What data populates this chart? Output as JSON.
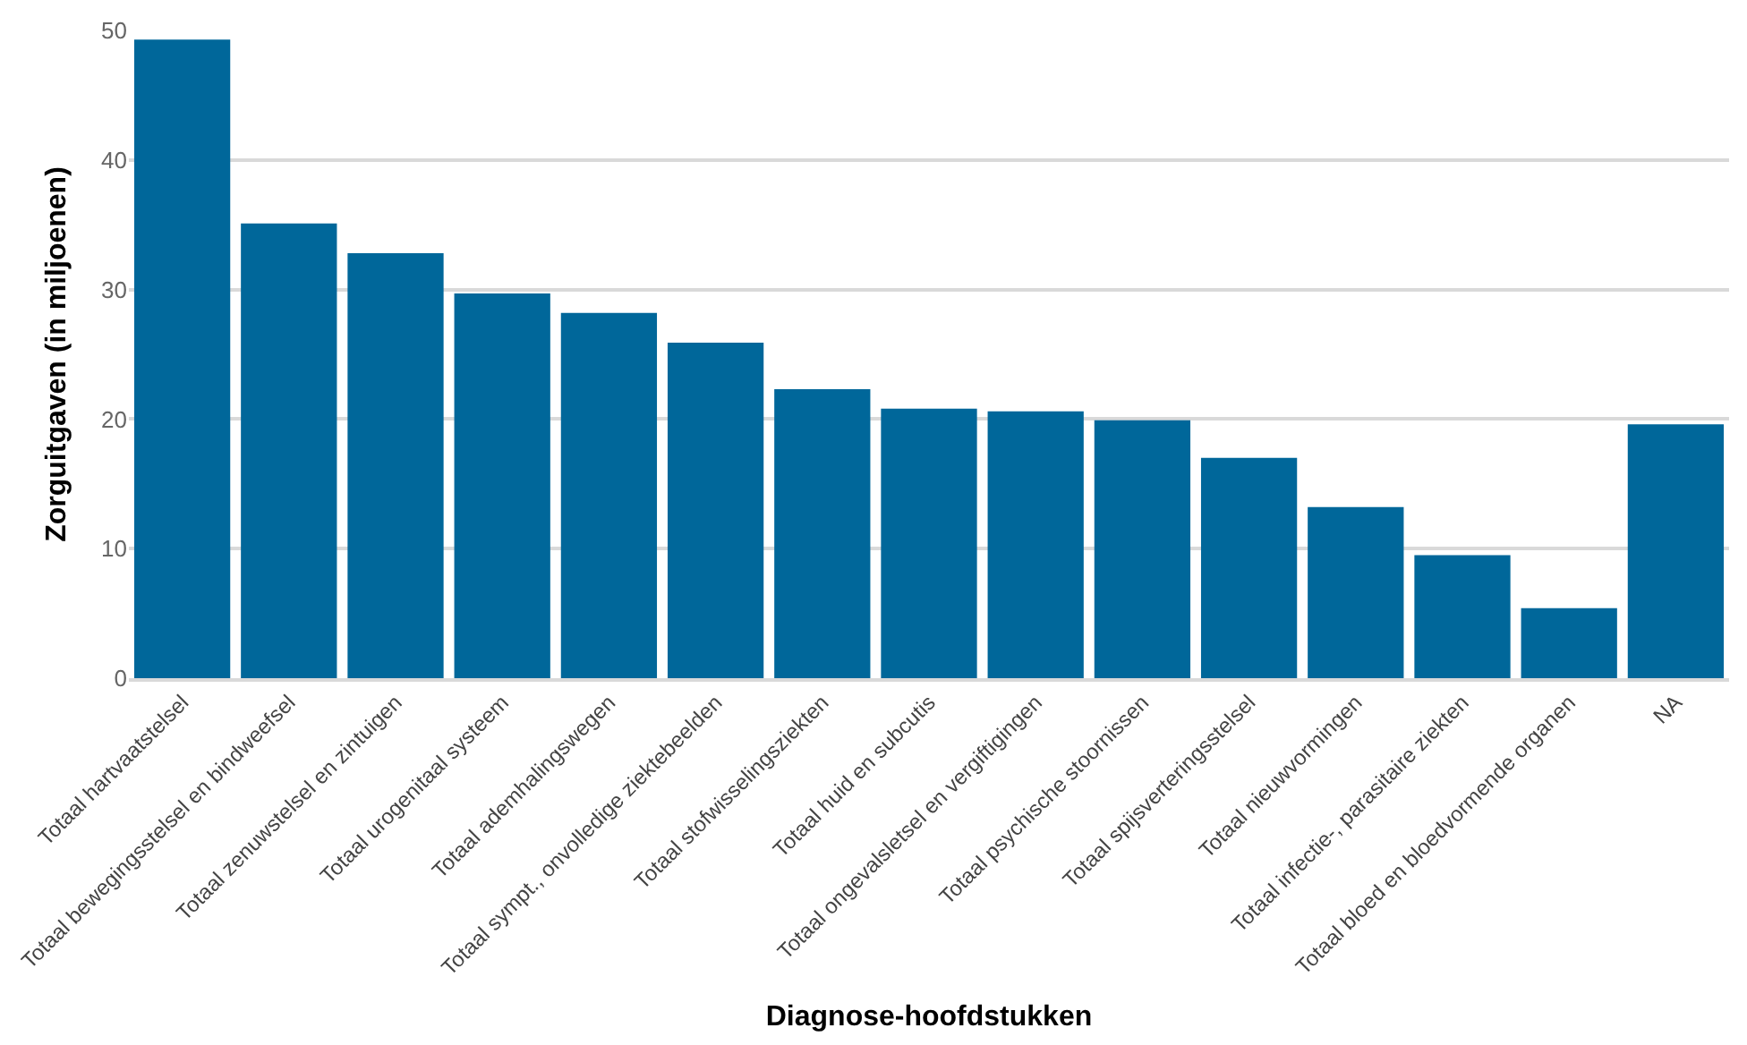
{
  "chart_data": {
    "type": "bar",
    "xlabel": "Diagnose-hoofdstukken",
    "ylabel": "Zorguitgaven (in miljoenen)",
    "categories": [
      "Totaal hartvaatstelsel",
      "Totaal bewegingsstelsel en bindweefsel",
      "Totaal zenuwstelsel en zintuigen",
      "Totaal urogenitaal systeem",
      "Totaal ademhalingswegen",
      "Totaal sympt., onvolledige ziektebeelden",
      "Totaal stofwisselingsziekten",
      "Totaal huid en subcutis",
      "Totaal ongevalsletsel en vergiftigingen",
      "Totaal psychische stoornissen",
      "Totaal spijsverteringsstelsel",
      "Totaal nieuwvormingen",
      "Totaal infectie-, parasitaire ziekten",
      "Totaal bloed en bloedvormende organen",
      "NA"
    ],
    "values": [
      49.3,
      35.1,
      32.8,
      29.7,
      28.2,
      25.9,
      22.3,
      20.8,
      20.6,
      19.9,
      17.0,
      13.2,
      9.5,
      5.4,
      19.6
    ],
    "color": "#00679a",
    "ylim": [
      0,
      50
    ],
    "yticks": [
      0,
      10,
      20,
      30,
      40,
      50
    ],
    "grid": "y"
  }
}
